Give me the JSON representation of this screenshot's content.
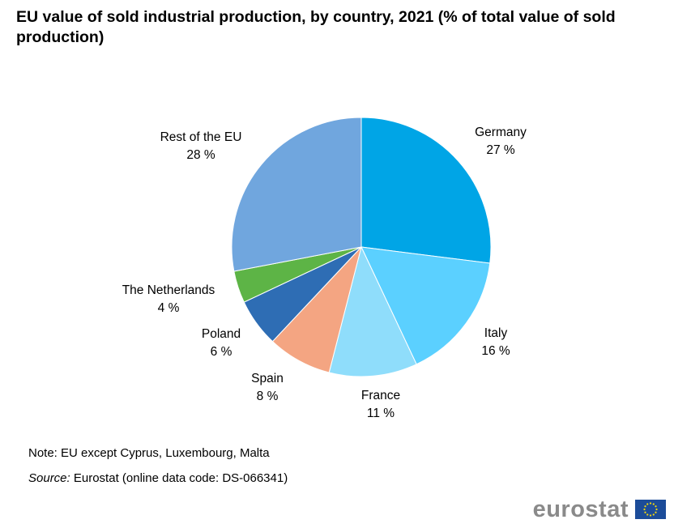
{
  "title": "EU value of sold industrial production, by country, 2021 (% of total value of sold production)",
  "chart_data": {
    "type": "pie",
    "title": "EU value of sold industrial production, by country, 2021 (% of total value of sold production)",
    "slices": [
      {
        "label": "Germany",
        "value": 27,
        "value_label": "27 %",
        "color": "#00A5E6"
      },
      {
        "label": "Italy",
        "value": 16,
        "value_label": "16 %",
        "color": "#5BD0FF"
      },
      {
        "label": "France",
        "value": 11,
        "value_label": "11 %",
        "color": "#8FDDFB"
      },
      {
        "label": "Spain",
        "value": 8,
        "value_label": "8 %",
        "color": "#F4A582"
      },
      {
        "label": "Poland",
        "value": 6,
        "value_label": "6 %",
        "color": "#2E6DB4"
      },
      {
        "label": "The Netherlands",
        "value": 4,
        "value_label": "4 %",
        "color": "#5DB446"
      },
      {
        "label": "Rest of the EU",
        "value": 28,
        "value_label": "28 %",
        "color": "#70A6DE"
      }
    ]
  },
  "note": "Note: EU except Cyprus, Luxembourg, Malta",
  "source": {
    "label": "Source:",
    "text": " Eurostat (online data code: DS-066341)"
  },
  "logo": {
    "text": "eurostat",
    "flag_color": "#1C4C99",
    "star_color": "#F5D90A"
  }
}
